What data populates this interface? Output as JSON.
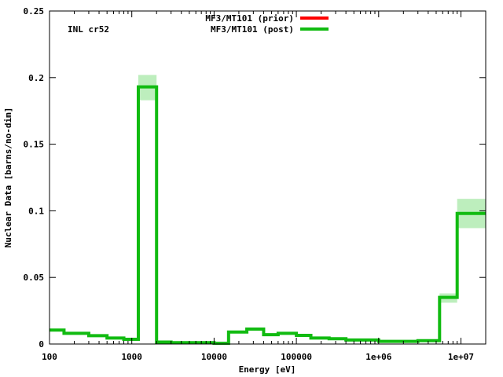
{
  "chart_data": {
    "type": "step",
    "title": "",
    "annotation": "INL cr52",
    "xlabel": "Energy [eV]",
    "ylabel": "Nuclear Data [barns/no-dim]",
    "x_scale": "log",
    "xlim": [
      100,
      20000000
    ],
    "ylim": [
      0,
      0.25
    ],
    "x_ticks": [
      {
        "value": 100,
        "label": "100"
      },
      {
        "value": 1000,
        "label": "1000"
      },
      {
        "value": 10000,
        "label": "10000"
      },
      {
        "value": 100000,
        "label": "100000"
      },
      {
        "value": 1000000,
        "label": "1e+06"
      },
      {
        "value": 10000000,
        "label": "1e+07"
      }
    ],
    "y_ticks": [
      {
        "value": 0,
        "label": "0"
      },
      {
        "value": 0.05,
        "label": "0.05"
      },
      {
        "value": 0.1,
        "label": "0.1"
      },
      {
        "value": 0.15,
        "label": "0.15"
      },
      {
        "value": 0.2,
        "label": "0.2"
      },
      {
        "value": 0.25,
        "label": "0.25"
      }
    ],
    "grid": false,
    "legend_position": "top-center",
    "series": [
      {
        "name": "MF3/MT101 (prior)",
        "color": "#ff0000",
        "values": []
      },
      {
        "name": "MF3/MT101 (post)",
        "color": "#11bb11",
        "band_color": "#bdeebd",
        "bins": [
          {
            "x0": 100,
            "x1": 150,
            "y": 0.0105,
            "lo": 0.0105,
            "hi": 0.0105
          },
          {
            "x0": 150,
            "x1": 300,
            "y": 0.008,
            "lo": 0.008,
            "hi": 0.008
          },
          {
            "x0": 300,
            "x1": 500,
            "y": 0.0063,
            "lo": 0.0063,
            "hi": 0.0063
          },
          {
            "x0": 500,
            "x1": 800,
            "y": 0.0045,
            "lo": 0.0045,
            "hi": 0.0045
          },
          {
            "x0": 800,
            "x1": 1200,
            "y": 0.0035,
            "lo": 0.0035,
            "hi": 0.0035
          },
          {
            "x0": 1200,
            "x1": 2000,
            "y": 0.193,
            "lo": 0.183,
            "hi": 0.202
          },
          {
            "x0": 2000,
            "x1": 3000,
            "y": 0.0015,
            "lo": 0.0015,
            "hi": 0.0015
          },
          {
            "x0": 3000,
            "x1": 10000,
            "y": 0.001,
            "lo": 0.001,
            "hi": 0.001
          },
          {
            "x0": 10000,
            "x1": 15000,
            "y": 0.0005,
            "lo": 0.0005,
            "hi": 0.0005
          },
          {
            "x0": 15000,
            "x1": 25000,
            "y": 0.009,
            "lo": 0.009,
            "hi": 0.009
          },
          {
            "x0": 25000,
            "x1": 40000,
            "y": 0.0112,
            "lo": 0.0112,
            "hi": 0.0112
          },
          {
            "x0": 40000,
            "x1": 60000,
            "y": 0.007,
            "lo": 0.007,
            "hi": 0.007
          },
          {
            "x0": 60000,
            "x1": 100000,
            "y": 0.008,
            "lo": 0.008,
            "hi": 0.008
          },
          {
            "x0": 100000,
            "x1": 150000,
            "y": 0.0065,
            "lo": 0.0065,
            "hi": 0.0065
          },
          {
            "x0": 150000,
            "x1": 250000,
            "y": 0.0045,
            "lo": 0.0045,
            "hi": 0.0045
          },
          {
            "x0": 250000,
            "x1": 400000,
            "y": 0.004,
            "lo": 0.004,
            "hi": 0.004
          },
          {
            "x0": 400000,
            "x1": 1000000,
            "y": 0.003,
            "lo": 0.003,
            "hi": 0.003
          },
          {
            "x0": 1000000,
            "x1": 3000000,
            "y": 0.002,
            "lo": 0.002,
            "hi": 0.002
          },
          {
            "x0": 3000000,
            "x1": 5500000,
            "y": 0.0025,
            "lo": 0.0025,
            "hi": 0.0025
          },
          {
            "x0": 5500000,
            "x1": 9000000,
            "y": 0.035,
            "lo": 0.031,
            "hi": 0.038
          },
          {
            "x0": 9000000,
            "x1": 20000000,
            "y": 0.098,
            "lo": 0.087,
            "hi": 0.109
          }
        ]
      }
    ]
  }
}
